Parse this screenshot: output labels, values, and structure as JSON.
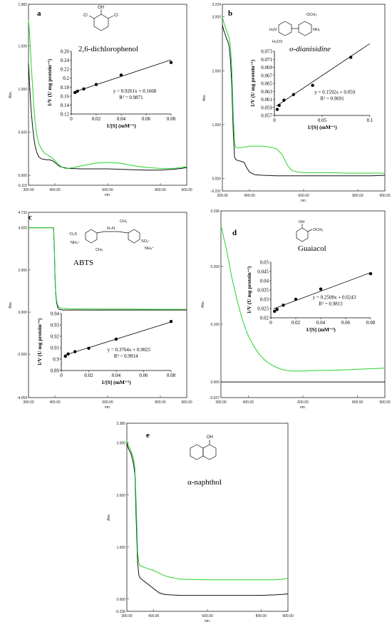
{
  "colors": {
    "trace_a": "#111111",
    "trace_b": "#27d12a",
    "axis": "#222222",
    "inset": "#000000"
  },
  "chart_data": [
    {
      "type": "line",
      "panel_letter": "a",
      "compound": "2,6-dichlorophenol",
      "ylabel": "Abs.",
      "xlabel": "nm.",
      "ylim": [
        -0.115,
        1.982
      ],
      "xlim": [
        300,
        900
      ],
      "y_tick_labels": [
        "1.982",
        "1.500",
        "1.000",
        "0.500",
        "0.000",
        "-0.115"
      ],
      "x_tick_labels": [
        "300.00",
        "400.00",
        "600.00",
        "800.00",
        "900.00"
      ],
      "series": [
        {
          "x": [
            300,
            305,
            310,
            315,
            320,
            325,
            330,
            335,
            340,
            350,
            360,
            370,
            380,
            390,
            400,
            410,
            420,
            450,
            500,
            550,
            600,
            650,
            700,
            750,
            800,
            850,
            880,
            900
          ],
          "y": [
            1.3,
            1.0,
            0.75,
            0.58,
            0.44,
            0.34,
            0.28,
            0.24,
            0.21,
            0.19,
            0.185,
            0.18,
            0.18,
            0.17,
            0.15,
            0.12,
            0.1,
            0.08,
            0.075,
            0.075,
            0.075,
            0.07,
            0.065,
            0.06,
            0.06,
            0.07,
            0.08,
            0.09
          ]
        },
        {
          "x": [
            300,
            305,
            310,
            315,
            320,
            325,
            330,
            335,
            340,
            350,
            360,
            370,
            380,
            390,
            400,
            410,
            420,
            430,
            440,
            450,
            470,
            500,
            550,
            600,
            650,
            700,
            750,
            800,
            850,
            880,
            900
          ],
          "y": [
            1.8,
            1.6,
            1.3,
            1.05,
            0.8,
            0.62,
            0.5,
            0.42,
            0.36,
            0.3,
            0.26,
            0.24,
            0.22,
            0.2,
            0.17,
            0.14,
            0.11,
            0.09,
            0.08,
            0.08,
            0.09,
            0.11,
            0.14,
            0.15,
            0.14,
            0.11,
            0.09,
            0.08,
            0.08,
            0.09,
            0.1
          ]
        }
      ],
      "inset": {
        "type": "scatter",
        "xlabel": "1/[S] (mM⁻¹)",
        "ylabel": "1/V (U mg protein⁻¹)",
        "xlim": [
          0,
          0.08
        ],
        "ylim": [
          0.12,
          0.26
        ],
        "x_tick_labels": [
          "0",
          "0.02",
          "0.04",
          "0.06",
          "0.08"
        ],
        "y_tick_labels": [
          "0.12",
          "0.14",
          "0.16",
          "0.18",
          "0.2",
          "0.22",
          "0.24",
          "0.26"
        ],
        "x": [
          0.003,
          0.005,
          0.01,
          0.02,
          0.04,
          0.08
        ],
        "y": [
          0.168,
          0.171,
          0.176,
          0.186,
          0.207,
          0.235
        ],
        "fit": {
          "slope": 0.9261,
          "intercept": 0.1668
        },
        "equation": "y = 0.9261x + 0.1668",
        "r2": "R² = 0.9871"
      }
    },
    {
      "type": "line",
      "panel_letter": "b",
      "compound": "o-dianisidine",
      "ylabel": "Abs.",
      "xlabel": "nm.",
      "ylim": [
        -0.231,
        3.234
      ],
      "xlim": [
        300,
        900
      ],
      "y_tick_labels": [
        "3.234",
        "3.000",
        "2.000",
        "1.000",
        "0.000",
        "-0.231"
      ],
      "x_tick_labels": [
        "300.00",
        "400.00",
        "600.00",
        "800.00",
        "900.00"
      ],
      "series": [
        {
          "x": [
            300,
            305,
            310,
            315,
            320,
            325,
            330,
            335,
            340,
            345,
            350,
            360,
            370,
            380,
            390,
            400,
            420,
            450,
            500,
            550,
            600,
            650,
            700,
            750,
            800,
            850,
            900
          ],
          "y": [
            2.85,
            2.75,
            2.68,
            2.6,
            2.55,
            2.45,
            2.2,
            1.7,
            0.9,
            0.4,
            0.35,
            0.33,
            0.32,
            0.3,
            0.2,
            0.12,
            0.07,
            0.06,
            0.05,
            0.05,
            0.05,
            0.05,
            0.05,
            0.05,
            0.05,
            0.05,
            0.06
          ]
        },
        {
          "x": [
            300,
            305,
            310,
            315,
            320,
            325,
            330,
            335,
            340,
            345,
            350,
            360,
            370,
            380,
            400,
            420,
            450,
            480,
            500,
            520,
            530,
            540,
            550,
            560,
            580,
            600,
            650,
            700,
            750,
            800,
            850,
            900
          ],
          "y": [
            3.0,
            2.9,
            2.82,
            2.75,
            2.68,
            2.6,
            2.45,
            2.0,
            1.2,
            0.65,
            0.58,
            0.57,
            0.58,
            0.58,
            0.6,
            0.6,
            0.6,
            0.58,
            0.55,
            0.45,
            0.35,
            0.25,
            0.18,
            0.14,
            0.12,
            0.11,
            0.11,
            0.11,
            0.1,
            0.1,
            0.1,
            0.1
          ]
        }
      ],
      "inset": {
        "type": "scatter",
        "xlabel": "1/[S] (mM⁻¹)",
        "ylabel": "1/V (U mg protein⁻¹)",
        "xlim": [
          0,
          0.1
        ],
        "ylim": [
          0.057,
          0.073
        ],
        "x_tick_labels": [
          "0",
          "0.05",
          "0.1"
        ],
        "y_tick_labels": [
          "0.057",
          "0.059",
          "0.061",
          "0.063",
          "0.065",
          "0.067",
          "0.069",
          "0.071",
          "0.073"
        ],
        "x": [
          0.003,
          0.005,
          0.01,
          0.02,
          0.04,
          0.08
        ],
        "y": [
          0.0585,
          0.0595,
          0.0608,
          0.0622,
          0.0645,
          0.0715
        ],
        "fit": {
          "slope": 0.1592,
          "intercept": 0.059
        },
        "equation": "y = 0.1592x + 0.059",
        "r2": "R² = 0.9691"
      }
    },
    {
      "type": "line",
      "panel_letter": "c",
      "compound": "ABTS",
      "ylabel": "Abs.",
      "xlabel": "nm.",
      "ylim": [
        -4.054,
        4.732
      ],
      "xlim": [
        300,
        900
      ],
      "y_tick_labels": [
        "4.732",
        "4.000",
        "2.000",
        "0.000",
        "-2.000",
        "-4.054"
      ],
      "x_tick_labels": [
        "300.00",
        "400.00",
        "600.00",
        "800.00",
        "900.00"
      ],
      "series": [
        {
          "x": [
            300,
            350,
            390,
            395,
            398,
            400,
            403,
            406,
            410,
            415,
            420,
            430,
            450,
            500,
            600,
            700,
            800,
            900
          ],
          "y": [
            4.0,
            4.0,
            4.0,
            4.0,
            3.0,
            1.8,
            0.9,
            0.5,
            0.25,
            0.15,
            0.12,
            0.1,
            0.1,
            0.1,
            0.1,
            0.1,
            0.1,
            0.1
          ]
        },
        {
          "x": [
            300,
            350,
            390,
            395,
            398,
            400,
            403,
            406,
            410,
            415,
            420,
            430,
            450,
            500,
            600,
            700,
            800,
            900
          ],
          "y": [
            4.0,
            4.0,
            4.0,
            4.0,
            3.2,
            2.0,
            1.0,
            0.6,
            0.35,
            0.25,
            0.2,
            0.18,
            0.16,
            0.15,
            0.14,
            0.14,
            0.13,
            0.13
          ]
        }
      ],
      "inset": {
        "type": "scatter",
        "xlabel": "1/[S] (mM⁻¹)",
        "ylabel": "1/V (U mg protein⁻¹)",
        "xlim": [
          0,
          0.08
        ],
        "ylim": [
          0.89,
          0.94
        ],
        "x_tick_labels": [
          "0",
          "0.02",
          "0.04",
          "0.06",
          "0.08"
        ],
        "y_tick_labels": [
          "0.89",
          "0.9",
          "0.91",
          "0.92",
          "0.93",
          "0.94"
        ],
        "x": [
          0.003,
          0.005,
          0.01,
          0.02,
          0.04,
          0.08
        ],
        "y": [
          0.9025,
          0.9045,
          0.9065,
          0.9095,
          0.9175,
          0.933
        ],
        "fit": {
          "slope": 0.3764,
          "intercept": 0.9025
        },
        "equation": "y = 0.3764x + 0.9025",
        "r2": "R² = 0.9914"
      }
    },
    {
      "type": "line",
      "panel_letter": "d",
      "compound": "Guaiacol",
      "ylabel": "Abs.",
      "xlabel": "nm.",
      "ylim": [
        -0.027,
        0.296
      ],
      "xlim": [
        300,
        900
      ],
      "y_tick_labels": [
        "0.296",
        "0.200",
        "0.100",
        "0.000",
        "-0.027"
      ],
      "x_tick_labels": [
        "300.00",
        "400.00",
        "600.00",
        "800.00",
        "900.00"
      ],
      "series": [
        {
          "x": [
            300,
            900
          ],
          "y": [
            0.0,
            0.0
          ]
        },
        {
          "x": [
            300,
            305,
            310,
            320,
            330,
            340,
            350,
            360,
            370,
            380,
            390,
            400,
            420,
            440,
            460,
            480,
            500,
            520,
            540,
            560,
            580,
            600,
            650,
            700,
            750,
            800,
            850,
            900
          ],
          "y": [
            0.27,
            0.262,
            0.25,
            0.23,
            0.205,
            0.18,
            0.16,
            0.14,
            0.122,
            0.106,
            0.092,
            0.08,
            0.062,
            0.048,
            0.038,
            0.031,
            0.026,
            0.022,
            0.02,
            0.019,
            0.019,
            0.019,
            0.02,
            0.02,
            0.021,
            0.022,
            0.023,
            0.024
          ]
        }
      ],
      "inset": {
        "type": "scatter",
        "xlabel": "1/[S] (mM⁻¹)",
        "ylabel": "1/V (U mg protein⁻¹)",
        "xlim": [
          0,
          0.08
        ],
        "ylim": [
          0.02,
          0.05
        ],
        "x_tick_labels": [
          "0",
          "0.02",
          "0.04",
          "0.06",
          "0.08"
        ],
        "y_tick_labels": [
          "0.02",
          "0.025",
          "0.03",
          "0.035",
          "0.04",
          "0.045",
          "0.05"
        ],
        "x": [
          0.003,
          0.005,
          0.01,
          0.02,
          0.04,
          0.08
        ],
        "y": [
          0.0235,
          0.0245,
          0.0268,
          0.03,
          0.0355,
          0.0438
        ],
        "fit": {
          "slope": 0.2508,
          "intercept": 0.0243
        },
        "equation": "y = 0.2508x + 0.0243",
        "r2": "R² = 0.9813"
      }
    },
    {
      "type": "line",
      "panel_letter": "e",
      "compound": "α-naphthol",
      "ylabel": "Abs.",
      "xlabel": "nm.",
      "ylim": [
        -0.236,
        3.38
      ],
      "xlim": [
        300,
        900
      ],
      "y_tick_labels": [
        "3.380",
        "3.000",
        "2.000",
        "1.000",
        "0.000",
        "-0.236"
      ],
      "x_tick_labels": [
        "300.00",
        "400.00",
        "600.00",
        "800.00",
        "900.00"
      ],
      "series": [
        {
          "x": [
            300,
            305,
            310,
            315,
            320,
            325,
            330,
            335,
            340,
            345,
            350,
            355,
            360,
            370,
            380,
            390,
            400,
            410,
            420,
            440,
            460,
            500,
            600,
            700,
            800,
            850,
            880,
            900
          ],
          "y": [
            3.0,
            2.9,
            2.85,
            2.8,
            2.7,
            2.6,
            2.4,
            1.5,
            0.7,
            0.45,
            0.4,
            0.38,
            0.36,
            0.32,
            0.28,
            0.24,
            0.2,
            0.16,
            0.12,
            0.09,
            0.08,
            0.07,
            0.07,
            0.07,
            0.07,
            0.08,
            0.09,
            0.1
          ]
        },
        {
          "x": [
            300,
            305,
            310,
            315,
            320,
            325,
            330,
            335,
            340,
            345,
            350,
            360,
            370,
            380,
            400,
            420,
            440,
            460,
            480,
            500,
            600,
            700,
            800,
            850,
            880,
            900
          ],
          "y": [
            3.05,
            2.95,
            2.9,
            2.85,
            2.78,
            2.7,
            2.5,
            1.8,
            0.9,
            0.68,
            0.64,
            0.62,
            0.6,
            0.58,
            0.55,
            0.5,
            0.45,
            0.42,
            0.4,
            0.38,
            0.37,
            0.37,
            0.37,
            0.37,
            0.38,
            0.4
          ]
        }
      ]
    }
  ]
}
